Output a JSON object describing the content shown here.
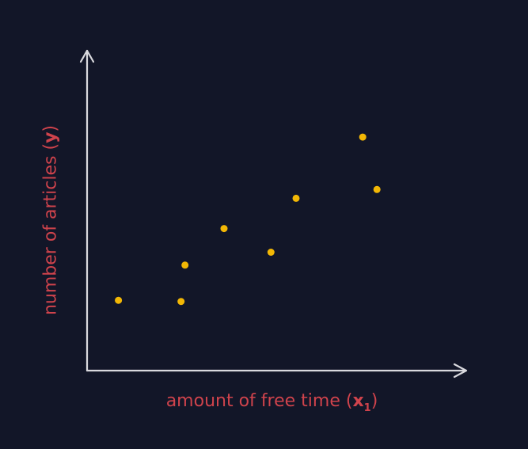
{
  "colors": {
    "background": "#121628",
    "axis": "#d9d9de",
    "point": "#f2b705",
    "label": "#cf434c"
  },
  "chart_data": {
    "type": "scatter",
    "title": "",
    "xlabel": {
      "text": "amount of free time (",
      "var": "x",
      "sub": "1",
      "close": ")"
    },
    "ylabel": {
      "text": "number of articles (",
      "var": "y",
      "close": ")"
    },
    "xlim": [
      0,
      10
    ],
    "ylim": [
      0,
      10
    ],
    "ticks": false,
    "grid": false,
    "legend": "none",
    "points": [
      {
        "x": 0.86,
        "y": 2.4
      },
      {
        "x": 2.58,
        "y": 2.36
      },
      {
        "x": 2.69,
        "y": 3.6
      },
      {
        "x": 3.76,
        "y": 4.85
      },
      {
        "x": 5.05,
        "y": 4.04
      },
      {
        "x": 5.74,
        "y": 5.88
      },
      {
        "x": 7.57,
        "y": 7.97
      },
      {
        "x": 7.96,
        "y": 6.18
      }
    ]
  }
}
